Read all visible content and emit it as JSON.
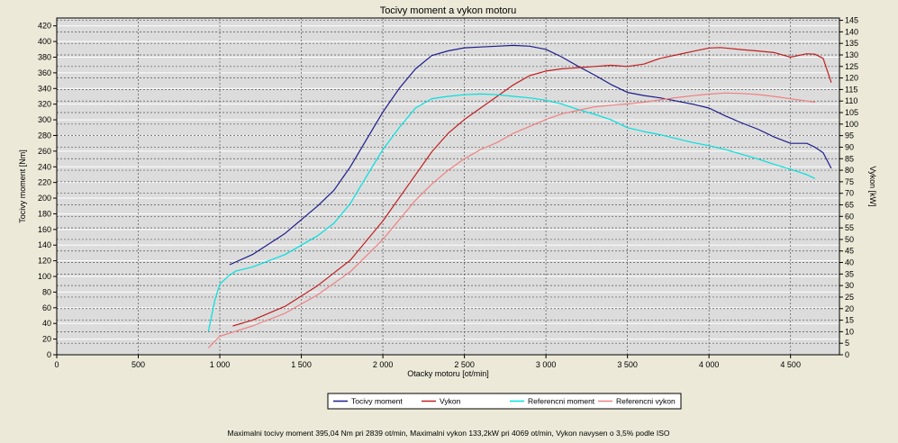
{
  "chart_data": {
    "type": "line",
    "title": "Tocivy moment a vykon motoru",
    "xlabel": "Otacky motoru [ot/min]",
    "ylabel_left": "Tocivy moment [Nm]",
    "ylabel_right": "Vykon [kW]",
    "xlim": [
      0,
      4800
    ],
    "ylim_left": [
      0,
      430
    ],
    "ylim_right": [
      0,
      146
    ],
    "x_ticks": [
      0,
      500,
      1000,
      1500,
      2000,
      2500,
      3000,
      3500,
      4000,
      4500
    ],
    "x_tick_labels": [
      "0",
      "500",
      "1 000",
      "1 500",
      "2 000",
      "2 500",
      "3 000",
      "3 500",
      "4 000",
      "4 500"
    ],
    "y_left_ticks": [
      0,
      20,
      40,
      60,
      80,
      100,
      120,
      140,
      160,
      180,
      200,
      220,
      240,
      260,
      280,
      300,
      320,
      340,
      360,
      380,
      400,
      420
    ],
    "y_right_ticks": [
      0,
      5,
      10,
      15,
      20,
      25,
      30,
      35,
      40,
      45,
      50,
      55,
      60,
      65,
      70,
      75,
      80,
      85,
      90,
      95,
      100,
      105,
      110,
      115,
      120,
      125,
      130,
      135,
      140,
      145
    ],
    "grid": true,
    "legend_position": "bottom",
    "series": [
      {
        "name": "Tocivy moment",
        "axis": "left",
        "color": "#1c1c8c",
        "points": [
          [
            1060,
            115
          ],
          [
            1200,
            128
          ],
          [
            1400,
            155
          ],
          [
            1600,
            190
          ],
          [
            1700,
            210
          ],
          [
            1800,
            240
          ],
          [
            1900,
            275
          ],
          [
            2000,
            310
          ],
          [
            2100,
            340
          ],
          [
            2200,
            365
          ],
          [
            2300,
            382
          ],
          [
            2400,
            388
          ],
          [
            2500,
            392
          ],
          [
            2600,
            393
          ],
          [
            2700,
            394
          ],
          [
            2800,
            395
          ],
          [
            2900,
            394
          ],
          [
            3000,
            390
          ],
          [
            3100,
            380
          ],
          [
            3200,
            368
          ],
          [
            3300,
            357
          ],
          [
            3400,
            345
          ],
          [
            3500,
            335
          ],
          [
            3600,
            331
          ],
          [
            3700,
            328
          ],
          [
            3800,
            324
          ],
          [
            3900,
            320
          ],
          [
            4000,
            315
          ],
          [
            4100,
            305
          ],
          [
            4200,
            296
          ],
          [
            4300,
            288
          ],
          [
            4400,
            278
          ],
          [
            4500,
            270
          ],
          [
            4600,
            270
          ],
          [
            4650,
            265
          ],
          [
            4700,
            258
          ],
          [
            4750,
            238
          ]
        ]
      },
      {
        "name": "Vykon",
        "axis": "right",
        "color": "#c02020",
        "points": [
          [
            1080,
            12.5
          ],
          [
            1200,
            15
          ],
          [
            1400,
            21
          ],
          [
            1600,
            30
          ],
          [
            1800,
            41
          ],
          [
            2000,
            58
          ],
          [
            2200,
            78
          ],
          [
            2300,
            88
          ],
          [
            2400,
            96
          ],
          [
            2500,
            102
          ],
          [
            2600,
            107
          ],
          [
            2700,
            112
          ],
          [
            2800,
            117
          ],
          [
            2900,
            121
          ],
          [
            3000,
            123
          ],
          [
            3100,
            124
          ],
          [
            3200,
            124.5
          ],
          [
            3300,
            125
          ],
          [
            3400,
            125.5
          ],
          [
            3500,
            125
          ],
          [
            3600,
            126
          ],
          [
            3700,
            128.5
          ],
          [
            3800,
            130
          ],
          [
            3900,
            131.5
          ],
          [
            4000,
            133
          ],
          [
            4069,
            133.2
          ],
          [
            4100,
            133
          ],
          [
            4200,
            132.3
          ],
          [
            4300,
            131.7
          ],
          [
            4400,
            131
          ],
          [
            4500,
            129
          ],
          [
            4600,
            130.5
          ],
          [
            4650,
            130.3
          ],
          [
            4700,
            128.5
          ],
          [
            4750,
            118
          ]
        ]
      },
      {
        "name": "Referencni moment",
        "axis": "left",
        "color": "#00e0e0",
        "points": [
          [
            930,
            30
          ],
          [
            970,
            70
          ],
          [
            1000,
            90
          ],
          [
            1050,
            100
          ],
          [
            1100,
            107
          ],
          [
            1200,
            112
          ],
          [
            1400,
            128
          ],
          [
            1600,
            152
          ],
          [
            1700,
            168
          ],
          [
            1800,
            193
          ],
          [
            1900,
            228
          ],
          [
            2000,
            262
          ],
          [
            2100,
            290
          ],
          [
            2200,
            315
          ],
          [
            2300,
            327
          ],
          [
            2400,
            330
          ],
          [
            2500,
            332
          ],
          [
            2600,
            333
          ],
          [
            2700,
            332
          ],
          [
            2800,
            330
          ],
          [
            2900,
            328
          ],
          [
            3000,
            325
          ],
          [
            3100,
            320
          ],
          [
            3200,
            313
          ],
          [
            3300,
            307
          ],
          [
            3400,
            300
          ],
          [
            3500,
            290
          ],
          [
            3600,
            285
          ],
          [
            3700,
            281
          ],
          [
            3800,
            276
          ],
          [
            3900,
            271
          ],
          [
            4000,
            267
          ],
          [
            4100,
            262
          ],
          [
            4200,
            256
          ],
          [
            4300,
            250
          ],
          [
            4400,
            243
          ],
          [
            4500,
            237
          ],
          [
            4600,
            230
          ],
          [
            4650,
            225
          ]
        ]
      },
      {
        "name": "Referencni vykon",
        "axis": "right",
        "color": "#f08080",
        "points": [
          [
            930,
            3
          ],
          [
            1000,
            8
          ],
          [
            1200,
            12.5
          ],
          [
            1400,
            18
          ],
          [
            1600,
            26
          ],
          [
            1800,
            36
          ],
          [
            2000,
            50
          ],
          [
            2200,
            67
          ],
          [
            2300,
            74
          ],
          [
            2400,
            80
          ],
          [
            2500,
            85
          ],
          [
            2600,
            89
          ],
          [
            2700,
            92
          ],
          [
            2800,
            96
          ],
          [
            2900,
            99
          ],
          [
            3000,
            102
          ],
          [
            3100,
            104.5
          ],
          [
            3200,
            106
          ],
          [
            3300,
            107.5
          ],
          [
            3400,
            108.2
          ],
          [
            3500,
            108.7
          ],
          [
            3600,
            109.5
          ],
          [
            3700,
            110.5
          ],
          [
            3800,
            111.5
          ],
          [
            3900,
            112.3
          ],
          [
            4000,
            113
          ],
          [
            4100,
            113.5
          ],
          [
            4200,
            113.3
          ],
          [
            4300,
            112.8
          ],
          [
            4400,
            112
          ],
          [
            4500,
            111
          ],
          [
            4600,
            110
          ],
          [
            4650,
            109.5
          ]
        ]
      }
    ],
    "footnote": "Maximalni tocivy moment 395,04 Nm pri 2839 ot/min,  Maximalni vykon 133,2kW pri 4069 ot/min,  Vykon navysen o 3,5% podle ISO"
  }
}
